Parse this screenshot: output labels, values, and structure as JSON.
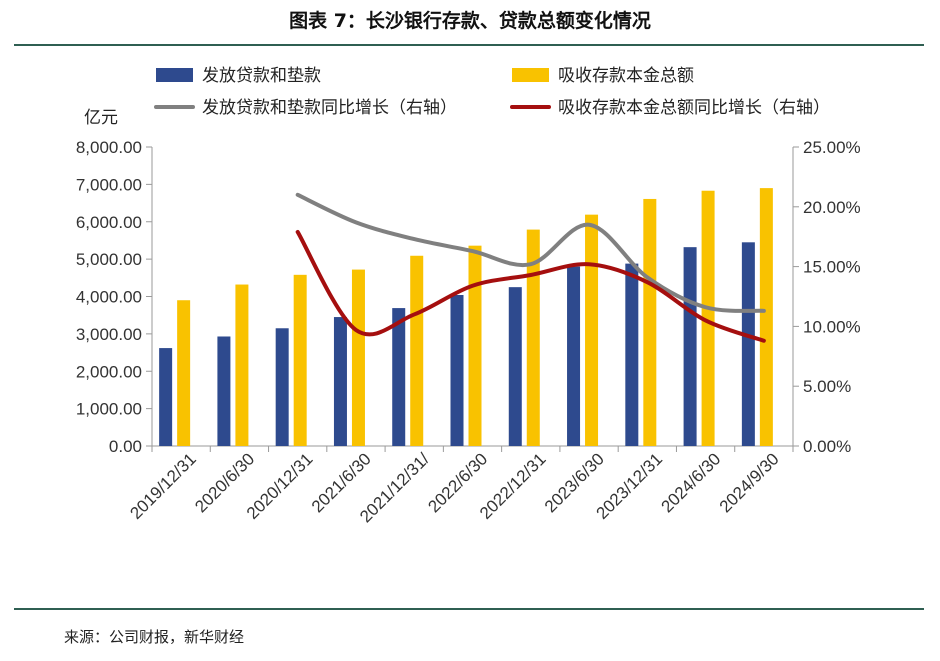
{
  "title": "图表 7：长沙银行存款、贷款总额变化情况",
  "source": "来源：公司财报，新华财经",
  "chart_data": {
    "type": "bar",
    "categories": [
      "2019/12/31",
      "2020/6/30",
      "2020/12/31",
      "2021/6/30",
      "2021/12/31/",
      "2022/6/30",
      "2022/12/31",
      "2023/6/30",
      "2023/12/31",
      "2024/6/30",
      "2024/9/30"
    ],
    "y_unit": "亿元",
    "ylim": [
      0,
      8000
    ],
    "yticks": [
      "0.00",
      "1,000.00",
      "2,000.00",
      "3,000.00",
      "4,000.00",
      "5,000.00",
      "6,000.00",
      "7,000.00",
      "8,000.00"
    ],
    "y2lim": [
      0,
      25
    ],
    "y2ticks": [
      "0.00%",
      "5.00%",
      "10.00%",
      "15.00%",
      "20.00%",
      "25.00%"
    ],
    "series": [
      {
        "name": "发放贷款和垫款",
        "kind": "bar",
        "axis": "left",
        "color": "#2e4a8e",
        "values": [
          2620,
          2930,
          3150,
          3450,
          3690,
          4040,
          4250,
          4800,
          4880,
          5320,
          5450
        ]
      },
      {
        "name": "吸收存款本金总额",
        "kind": "bar",
        "axis": "left",
        "color": "#f9c200",
        "values": [
          3900,
          4320,
          4580,
          4720,
          5090,
          5360,
          5790,
          6190,
          6610,
          6830,
          6900
        ]
      },
      {
        "name": "发放贷款和垫款同比增长（右轴）",
        "kind": "line",
        "axis": "right",
        "color": "#808080",
        "values": [
          null,
          null,
          21.0,
          18.7,
          17.3,
          16.3,
          15.2,
          18.5,
          14.1,
          11.6,
          11.3
        ]
      },
      {
        "name": "吸收存款本金总额同比增长（右轴）",
        "kind": "line",
        "axis": "right",
        "color": "#a50f0f",
        "values": [
          null,
          null,
          17.9,
          9.7,
          11.0,
          13.4,
          14.3,
          15.2,
          13.7,
          10.5,
          8.8
        ]
      }
    ]
  }
}
